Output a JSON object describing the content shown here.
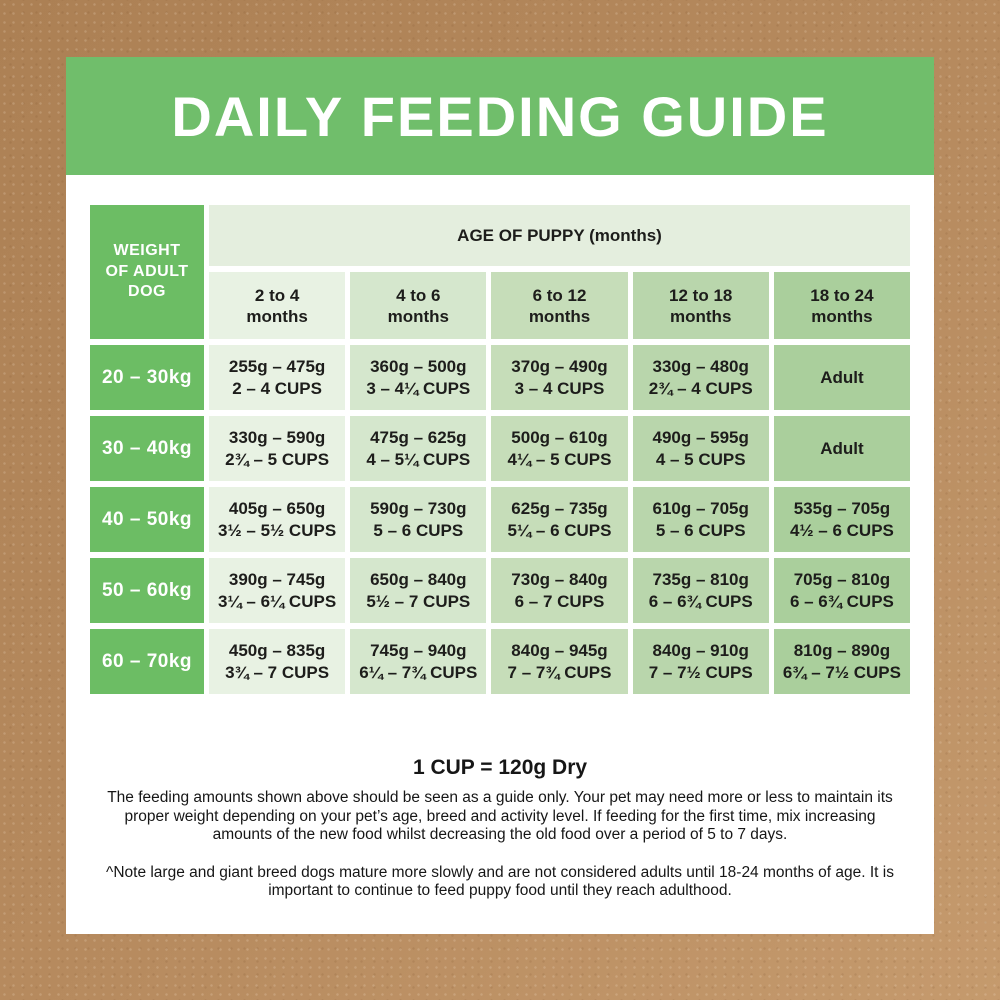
{
  "title": "DAILY FEEDING GUIDE",
  "table": {
    "corner_header": "WEIGHT OF ADULT DOG",
    "age_header": "AGE OF PUPPY (months)",
    "columns": [
      {
        "range": "2 to 4",
        "unit": "months"
      },
      {
        "range": "4 to 6",
        "unit": "months"
      },
      {
        "range": "6 to 12",
        "unit": "months"
      },
      {
        "range": "12 to 18",
        "unit": "months"
      },
      {
        "range": "18 to 24",
        "unit": "months"
      }
    ],
    "rows": [
      {
        "weight": "20 – 30kg",
        "cells": [
          {
            "grams": "255g – 475g",
            "cups": "2 – 4 CUPS"
          },
          {
            "grams": "360g – 500g",
            "cups": "3 – 4¼ CUPS"
          },
          {
            "grams": "370g – 490g",
            "cups": "3 – 4 CUPS"
          },
          {
            "grams": "330g – 480g",
            "cups": "2¾ – 4 CUPS"
          },
          {
            "grams": "Adult",
            "cups": ""
          }
        ]
      },
      {
        "weight": "30 – 40kg",
        "cells": [
          {
            "grams": "330g – 590g",
            "cups": "2¾ – 5 CUPS"
          },
          {
            "grams": "475g – 625g",
            "cups": "4 – 5¼ CUPS"
          },
          {
            "grams": "500g – 610g",
            "cups": "4¼ – 5 CUPS"
          },
          {
            "grams": "490g – 595g",
            "cups": "4 – 5 CUPS"
          },
          {
            "grams": "Adult",
            "cups": ""
          }
        ]
      },
      {
        "weight": "40 – 50kg",
        "cells": [
          {
            "grams": "405g – 650g",
            "cups": "3½ – 5½ CUPS"
          },
          {
            "grams": "590g – 730g",
            "cups": "5 – 6 CUPS"
          },
          {
            "grams": "625g – 735g",
            "cups": "5¼ – 6 CUPS"
          },
          {
            "grams": "610g – 705g",
            "cups": "5 – 6 CUPS"
          },
          {
            "grams": "535g – 705g",
            "cups": "4½ – 6 CUPS"
          }
        ]
      },
      {
        "weight": "50 – 60kg",
        "cells": [
          {
            "grams": "390g – 745g",
            "cups": "3¼ – 6¼ CUPS"
          },
          {
            "grams": "650g – 840g",
            "cups": "5½ – 7 CUPS"
          },
          {
            "grams": "730g – 840g",
            "cups": "6 – 7 CUPS"
          },
          {
            "grams": "735g – 810g",
            "cups": "6 – 6¾ CUPS"
          },
          {
            "grams": "705g – 810g",
            "cups": "6 – 6¾ CUPS"
          }
        ]
      },
      {
        "weight": "60 – 70kg",
        "cells": [
          {
            "grams": "450g – 835g",
            "cups": "3¾ – 7 CUPS"
          },
          {
            "grams": "745g – 940g",
            "cups": "6¼ – 7¾ CUPS"
          },
          {
            "grams": "840g – 945g",
            "cups": "7 – 7¾ CUPS"
          },
          {
            "grams": "840g – 910g",
            "cups": "7 – 7½ CUPS"
          },
          {
            "grams": "810g – 890g",
            "cups": "6¾ – 7½ CUPS"
          }
        ]
      }
    ]
  },
  "footer": {
    "cup_note": "1 CUP = 120g Dry",
    "note1": "The feeding amounts shown above should be seen as a guide only. Your pet may need more or less to maintain its proper weight depending on your pet’s age, breed and activity level. If feeding for the first time, mix increasing amounts of the new food whilst decreasing the old food over a period of 5 to 7 days.",
    "note2": "^Note large and giant breed dogs mature more slowly and are not considered adults until 18-24 months of age. It is important to continue to feed puppy food until they reach adulthood."
  },
  "colors": {
    "background_brown": "#b4885c",
    "banner_green": "#70be6b",
    "row_label_green": "#6cbd64",
    "age_header_bg": "#e4eede",
    "column_shades": [
      "#e8f2e3",
      "#d5e7cd",
      "#c6ddb9",
      "#b9d6ac",
      "#aacf9c"
    ],
    "text_dark": "#1d1d1b",
    "card_white": "#ffffff"
  }
}
